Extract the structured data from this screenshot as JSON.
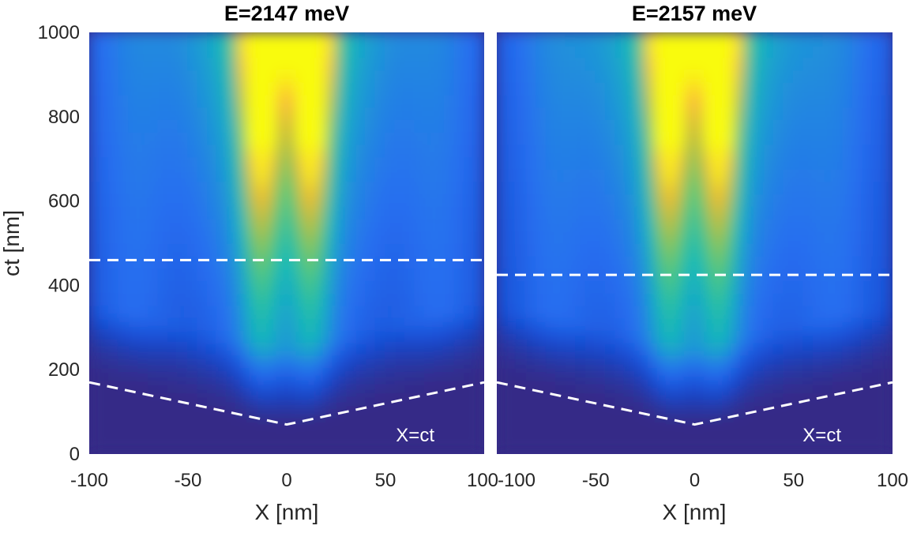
{
  "chart_data": [
    {
      "type": "heatmap",
      "title": "E=2147 meV",
      "xlabel": "X [nm]",
      "ylabel": "ct [nm]",
      "xlim": [
        -100,
        100
      ],
      "ylim": [
        0,
        1000
      ],
      "xticks": [
        -100,
        -50,
        0,
        50,
        100
      ],
      "xtick_labels": [
        "-100",
        "-50",
        "0",
        "50",
        "100"
      ],
      "yticks": [
        0,
        200,
        400,
        600,
        800,
        1000
      ],
      "ytick_labels": [
        "0",
        "200",
        "400",
        "600",
        "800",
        "1000"
      ],
      "colormap": "parula",
      "peaks_x": [
        -13,
        13
      ],
      "side_lobes_x": [
        -78,
        78
      ],
      "front_apex_ct": 70,
      "dashed_lines": [
        {
          "name": "threshold",
          "points": [
            [
              -100,
              460
            ],
            [
              100,
              460
            ]
          ]
        },
        {
          "name": "light-cone",
          "points": [
            [
              -100,
              170
            ],
            [
              0,
              70
            ],
            [
              100,
              170
            ]
          ]
        }
      ],
      "annotation": "X=ct"
    },
    {
      "type": "heatmap",
      "title": "E=2157 meV",
      "xlabel": "X [nm]",
      "ylabel": "",
      "xlim": [
        -100,
        100
      ],
      "ylim": [
        0,
        1000
      ],
      "xticks": [
        -100,
        -50,
        0,
        50,
        100
      ],
      "xtick_labels": [
        "-100",
        "-50",
        "0",
        "50",
        "100"
      ],
      "yticks": [],
      "ytick_labels": [],
      "colormap": "parula",
      "peaks_x": [
        -13,
        13
      ],
      "side_lobes_x": [
        -72,
        72
      ],
      "front_apex_ct": 70,
      "dashed_lines": [
        {
          "name": "threshold",
          "points": [
            [
              -100,
              425
            ],
            [
              100,
              425
            ]
          ]
        },
        {
          "name": "light-cone",
          "points": [
            [
              -100,
              170
            ],
            [
              0,
              70
            ],
            [
              100,
              170
            ]
          ]
        }
      ],
      "annotation": "X=ct"
    }
  ],
  "colors": {
    "background": "#352a87",
    "dashed": "#ffffff",
    "text": "#262626"
  }
}
